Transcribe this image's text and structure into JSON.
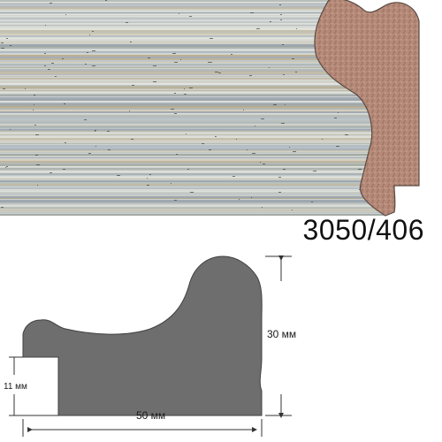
{
  "product": {
    "article_code": "3050/406"
  },
  "dimensions": {
    "height_label": "30 мм",
    "rebate_label": "11 мм",
    "width_label": "50 мм"
  },
  "colors": {
    "wood_base": "#cfd3cf",
    "wood_stripe_beige": "#b8a98a",
    "wood_stripe_blue": "#a9b4be",
    "cross_section_cork": "#b58a78",
    "profile_fill": "#6e6e6e",
    "dimension_line": "#333333"
  }
}
